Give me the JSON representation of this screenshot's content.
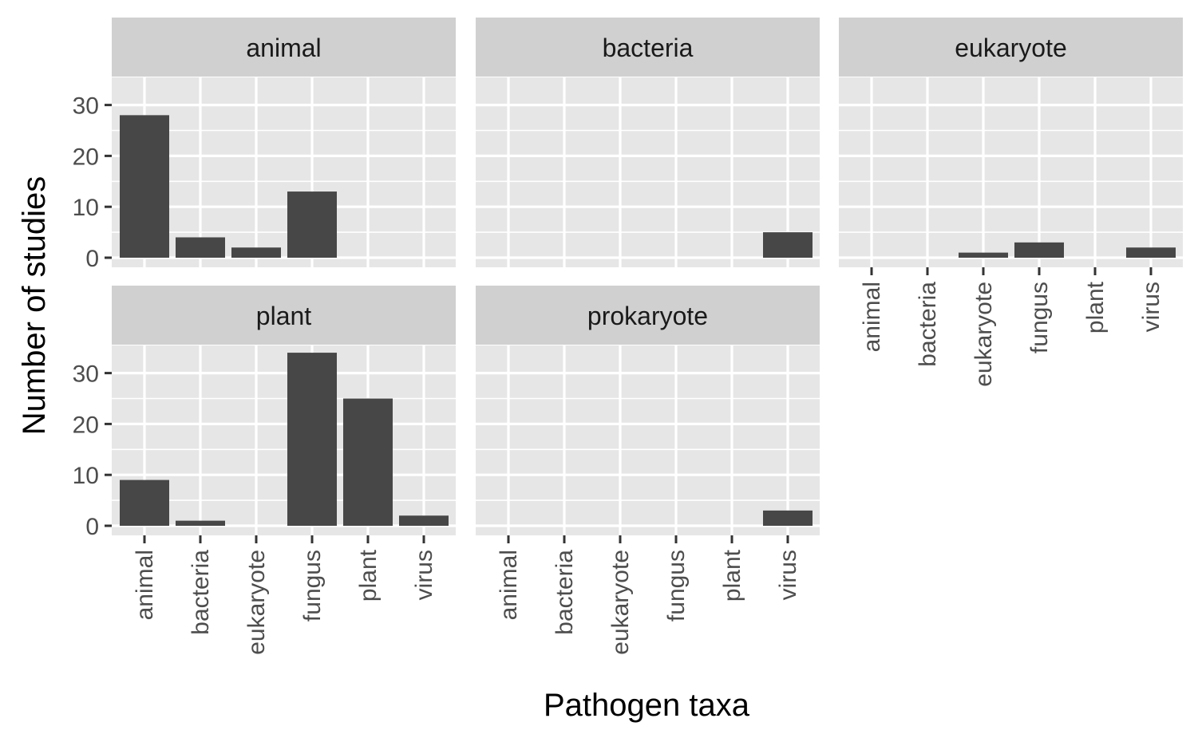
{
  "chart_data": {
    "type": "bar",
    "layout": "facet-wrap",
    "xlabel": "Pathogen taxa",
    "ylabel": "Number of studies",
    "categories": [
      "animal",
      "bacteria",
      "eukaryote",
      "fungus",
      "plant",
      "virus"
    ],
    "ylim": [
      0,
      35
    ],
    "yticks": [
      0,
      10,
      20,
      30
    ],
    "grid": true,
    "panels": [
      {
        "name": "animal",
        "values": [
          28,
          4,
          2,
          13,
          0,
          0
        ]
      },
      {
        "name": "bacteria",
        "values": [
          0,
          0,
          0,
          0,
          0,
          5
        ]
      },
      {
        "name": "eukaryote",
        "values": [
          0,
          0,
          1,
          3,
          0,
          2
        ]
      },
      {
        "name": "plant",
        "values": [
          9,
          1,
          0,
          34,
          25,
          2
        ]
      },
      {
        "name": "prokaryote",
        "values": [
          0,
          0,
          0,
          0,
          0,
          3
        ]
      }
    ],
    "colors": {
      "bar": "#474747",
      "panel_background": "#e6e6e6",
      "strip_background": "#d0d0d0",
      "grid": "#ffffff",
      "text": "#4d4d4d",
      "title_text": "#000000"
    }
  }
}
